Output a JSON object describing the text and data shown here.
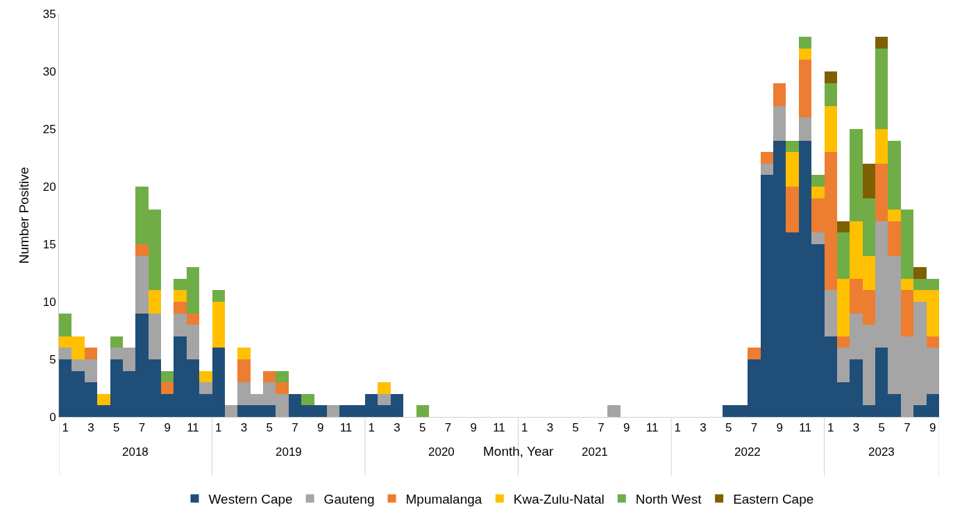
{
  "chart_data": {
    "type": "bar",
    "stacked": true,
    "xlabel": "Month, Year",
    "ylabel": "Number Positive",
    "categories": [
      "1",
      null,
      "3",
      null,
      "5",
      null,
      "7",
      null,
      "9",
      null,
      "11",
      null,
      "1",
      null,
      "3",
      null,
      "5",
      null,
      "7",
      null,
      "9",
      null,
      "11",
      null,
      "1",
      null,
      "3",
      null,
      "5",
      null,
      "7",
      null,
      "9",
      null,
      "11",
      null,
      "1",
      null,
      "3",
      null,
      "5",
      null,
      "7",
      null,
      "9",
      null,
      "11",
      null,
      "1",
      null,
      "3",
      null,
      "5",
      null,
      "7",
      null,
      "9",
      null,
      "11",
      null,
      "1",
      null,
      "3",
      null,
      "5",
      null,
      "7",
      null,
      "9"
    ],
    "annotations": [
      "2018",
      "2019",
      "2020",
      "2021",
      "2022",
      "2023"
    ],
    "ylim": [
      0,
      35
    ],
    "yticks": [
      0,
      5,
      10,
      15,
      20,
      25,
      30,
      35
    ],
    "legend": "bottom",
    "series": [
      {
        "name": "Western Cape",
        "color": "#1f4e79",
        "values": [
          5,
          4,
          3,
          1,
          5,
          4,
          9,
          5,
          2,
          7,
          5,
          2,
          6,
          0,
          1,
          1,
          1,
          0,
          2,
          1,
          1,
          0,
          1,
          1,
          2,
          1,
          2,
          0,
          0,
          0,
          0,
          0,
          0,
          0,
          0,
          0,
          0,
          0,
          0,
          0,
          0,
          0,
          0,
          0,
          0,
          0,
          0,
          0,
          0,
          0,
          0,
          0,
          1,
          1,
          5,
          21,
          24,
          16,
          24,
          15,
          7,
          3,
          5,
          1,
          6,
          2,
          0,
          1,
          2
        ]
      },
      {
        "name": "Gauteng",
        "color": "#a5a5a5",
        "values": [
          1,
          1,
          2,
          0,
          1,
          2,
          5,
          4,
          0,
          2,
          3,
          1,
          0,
          1,
          2,
          1,
          2,
          2,
          0,
          0,
          0,
          1,
          0,
          0,
          0,
          1,
          0,
          0,
          0,
          0,
          0,
          0,
          0,
          0,
          0,
          0,
          0,
          0,
          0,
          0,
          0,
          0,
          0,
          1,
          0,
          0,
          0,
          0,
          0,
          0,
          0,
          0,
          0,
          0,
          0,
          1,
          3,
          0,
          2,
          1,
          4,
          3,
          4,
          7,
          11,
          12,
          7,
          9,
          4
        ]
      },
      {
        "name": "Mpumalanga",
        "color": "#ed7d31",
        "values": [
          0,
          0,
          1,
          0,
          0,
          0,
          1,
          0,
          1,
          1,
          1,
          0,
          0,
          0,
          2,
          0,
          1,
          1,
          0,
          0,
          0,
          0,
          0,
          0,
          0,
          0,
          0,
          0,
          0,
          0,
          0,
          0,
          0,
          0,
          0,
          0,
          0,
          0,
          0,
          0,
          0,
          0,
          0,
          0,
          0,
          0,
          0,
          0,
          0,
          0,
          0,
          0,
          0,
          0,
          1,
          1,
          2,
          4,
          5,
          3,
          12,
          1,
          3,
          3,
          5,
          3,
          4,
          0,
          1
        ]
      },
      {
        "name": "Kwa-Zulu-Natal",
        "color": "#ffc000",
        "values": [
          1,
          2,
          0,
          1,
          0,
          0,
          0,
          2,
          0,
          1,
          0,
          1,
          4,
          0,
          1,
          0,
          0,
          0,
          0,
          0,
          0,
          0,
          0,
          0,
          0,
          1,
          0,
          0,
          0,
          0,
          0,
          0,
          0,
          0,
          0,
          0,
          0,
          0,
          0,
          0,
          0,
          0,
          0,
          0,
          0,
          0,
          0,
          0,
          0,
          0,
          0,
          0,
          0,
          0,
          0,
          0,
          0,
          3,
          1,
          1,
          4,
          5,
          5,
          3,
          3,
          1,
          1,
          1,
          4
        ]
      },
      {
        "name": "North West",
        "color": "#70ad47",
        "values": [
          2,
          0,
          0,
          0,
          1,
          0,
          5,
          7,
          1,
          1,
          4,
          0,
          1,
          0,
          0,
          0,
          0,
          1,
          0,
          1,
          0,
          0,
          0,
          0,
          0,
          0,
          0,
          0,
          1,
          0,
          0,
          0,
          0,
          0,
          0,
          0,
          0,
          0,
          0,
          0,
          0,
          0,
          0,
          0,
          0,
          0,
          0,
          0,
          0,
          0,
          0,
          0,
          0,
          0,
          0,
          0,
          0,
          1,
          1,
          1,
          2,
          4,
          8,
          5,
          7,
          6,
          6,
          1,
          1
        ]
      },
      {
        "name": "Eastern Cape",
        "color": "#7f6000",
        "values": [
          0,
          0,
          0,
          0,
          0,
          0,
          0,
          0,
          0,
          0,
          0,
          0,
          0,
          0,
          0,
          0,
          0,
          0,
          0,
          0,
          0,
          0,
          0,
          0,
          0,
          0,
          0,
          0,
          0,
          0,
          0,
          0,
          0,
          0,
          0,
          0,
          0,
          0,
          0,
          0,
          0,
          0,
          0,
          0,
          0,
          0,
          0,
          0,
          0,
          0,
          0,
          0,
          0,
          0,
          0,
          0,
          0,
          0,
          0,
          0,
          1,
          1,
          0,
          3,
          1,
          0,
          0,
          1,
          0
        ]
      }
    ]
  }
}
